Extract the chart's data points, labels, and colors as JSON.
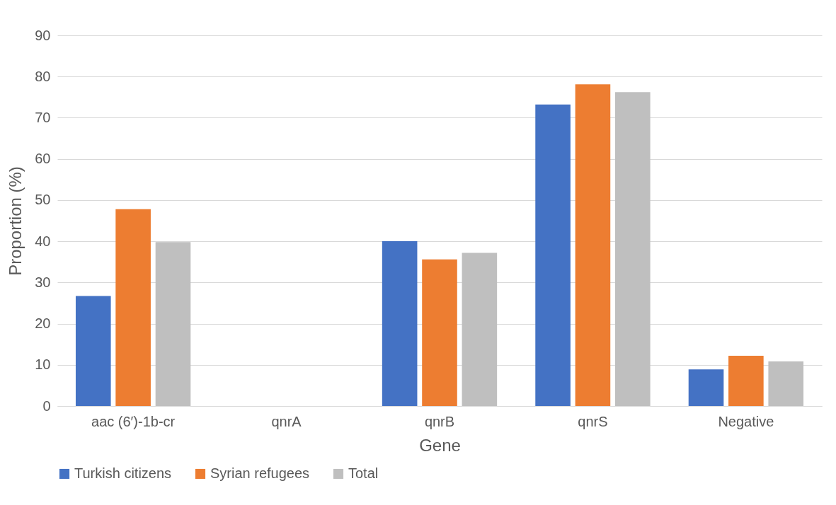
{
  "chart_data": {
    "type": "bar",
    "xlabel": "Gene",
    "ylabel": "Proportion (%)",
    "categories": [
      "aac (6′)-1b-cr",
      "qnrA",
      "qnrB",
      "qnrS",
      "Negative"
    ],
    "series": [
      {
        "name": "Turkish citizens",
        "color": "#4472c4",
        "values": [
          26.7,
          0,
          40,
          73.2,
          8.9
        ]
      },
      {
        "name": "Syrian refugees",
        "color": "#ed7d31",
        "values": [
          47.8,
          0,
          35.6,
          78.1,
          12.2
        ]
      },
      {
        "name": "Total",
        "color": "#bfbfbf",
        "values": [
          39.8,
          0,
          37.2,
          76.2,
          10.8
        ]
      }
    ],
    "ylim": [
      0,
      90
    ],
    "yticks": [
      0,
      10,
      20,
      30,
      40,
      50,
      60,
      70,
      80,
      90
    ],
    "grid": "y",
    "legend": "bottom"
  }
}
